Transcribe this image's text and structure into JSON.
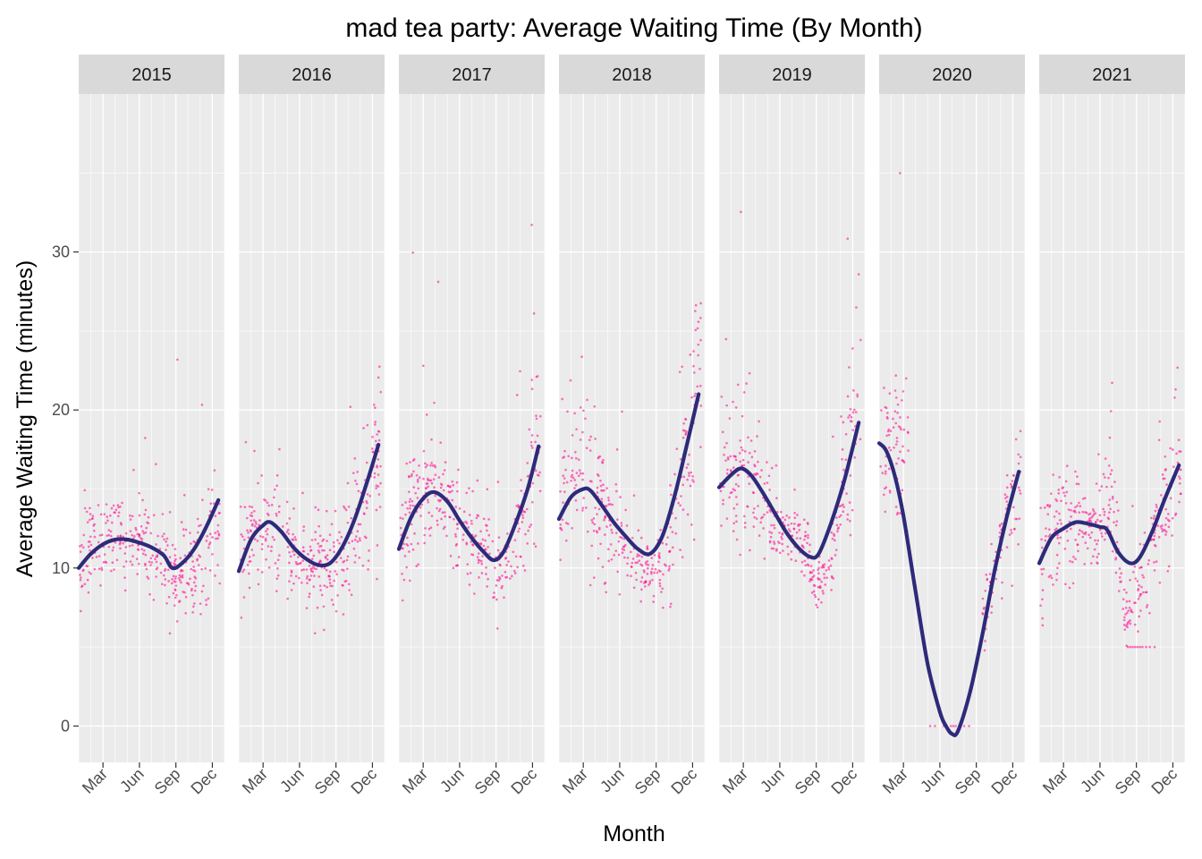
{
  "chart_data": {
    "type": "scatter",
    "title": "mad tea party: Average Waiting Time (By Month)",
    "xlabel": "Month",
    "ylabel": "Average Waiting Time (minutes)",
    "ylim": [
      -2.3,
      40
    ],
    "y_ticks": [
      0,
      10,
      20,
      30
    ],
    "x_ticks": [
      {
        "label": "Mar",
        "month": 3
      },
      {
        "label": "Jun",
        "month": 6
      },
      {
        "label": "Sep",
        "month": 9
      },
      {
        "label": "Dec",
        "month": 12
      }
    ],
    "xlim_months": [
      1,
      13
    ],
    "grid": true,
    "colors": {
      "points": "#ff1493",
      "smooth": "#2e2a7a",
      "panel_bg": "#ebebeb",
      "strip_bg": "#d9d9d9",
      "grid": "#ffffff"
    },
    "panels": [
      {
        "year": "2015",
        "smooth": [
          [
            1.0,
            10.0
          ],
          [
            2.0,
            10.9
          ],
          [
            3.0,
            11.5
          ],
          [
            4.0,
            11.8
          ],
          [
            5.0,
            11.8
          ],
          [
            6.0,
            11.6
          ],
          [
            7.0,
            11.3
          ],
          [
            8.0,
            10.8
          ],
          [
            8.7,
            10.0
          ],
          [
            9.5,
            10.3
          ],
          [
            10.5,
            11.2
          ],
          [
            11.5,
            12.6
          ],
          [
            12.5,
            14.3
          ]
        ],
        "point_profile": [
          [
            1,
            10,
            2.5
          ],
          [
            2,
            11,
            2.6
          ],
          [
            3,
            11.5,
            2.4
          ],
          [
            4,
            12,
            2.6
          ],
          [
            5,
            11.5,
            2.2
          ],
          [
            6,
            11.5,
            2.0
          ],
          [
            7,
            11.2,
            2.2
          ],
          [
            8,
            10.5,
            2.2
          ],
          [
            9,
            9.5,
            2.3
          ],
          [
            10,
            9.5,
            2.5
          ],
          [
            11,
            10.5,
            3.0
          ],
          [
            12,
            12.5,
            3.5
          ],
          [
            12.5,
            14,
            4.0
          ]
        ],
        "points_per_month": 30
      },
      {
        "year": "2016",
        "smooth": [
          [
            1.0,
            9.8
          ],
          [
            2.0,
            11.8
          ],
          [
            3.0,
            12.7
          ],
          [
            3.6,
            12.9
          ],
          [
            4.5,
            12.3
          ],
          [
            5.5,
            11.3
          ],
          [
            6.5,
            10.6
          ],
          [
            7.5,
            10.2
          ],
          [
            8.5,
            10.3
          ],
          [
            9.5,
            11.3
          ],
          [
            10.5,
            13.0
          ],
          [
            11.5,
            15.3
          ],
          [
            12.5,
            17.8
          ]
        ],
        "point_profile": [
          [
            1,
            10,
            3.0
          ],
          [
            2,
            12,
            3.2
          ],
          [
            3,
            12.5,
            3.2
          ],
          [
            4,
            12,
            3.5
          ],
          [
            5,
            11,
            2.8
          ],
          [
            6,
            10.5,
            2.5
          ],
          [
            7,
            10,
            2.5
          ],
          [
            8,
            10,
            2.5
          ],
          [
            9,
            10,
            2.8
          ],
          [
            10,
            11.5,
            3.0
          ],
          [
            11,
            13,
            3.5
          ],
          [
            12,
            16,
            4.5
          ],
          [
            12.5,
            17,
            5.0
          ]
        ],
        "points_per_month": 30
      },
      {
        "year": "2017",
        "smooth": [
          [
            1.0,
            11.2
          ],
          [
            2.0,
            13.2
          ],
          [
            3.0,
            14.4
          ],
          [
            3.9,
            14.8
          ],
          [
            5.0,
            14.2
          ],
          [
            6.0,
            13.0
          ],
          [
            7.0,
            11.9
          ],
          [
            8.0,
            11.0
          ],
          [
            8.8,
            10.5
          ],
          [
            9.6,
            11.0
          ],
          [
            10.6,
            12.8
          ],
          [
            11.6,
            15.0
          ],
          [
            12.5,
            17.7
          ]
        ],
        "point_profile": [
          [
            1,
            11.5,
            3.2
          ],
          [
            2,
            13.5,
            3.5
          ],
          [
            3,
            14.5,
            3.5
          ],
          [
            4,
            15,
            3.8
          ],
          [
            5,
            14,
            3.2
          ],
          [
            6,
            12.5,
            2.8
          ],
          [
            7,
            12,
            2.6
          ],
          [
            8,
            11,
            2.4
          ],
          [
            9,
            9,
            2.2
          ],
          [
            10,
            10.5,
            2.5
          ],
          [
            11,
            13,
            3.5
          ],
          [
            12,
            16,
            4.5
          ],
          [
            12.5,
            18,
            5.5
          ]
        ],
        "points_per_month": 30
      },
      {
        "year": "2018",
        "smooth": [
          [
            1.0,
            13.1
          ],
          [
            2.0,
            14.5
          ],
          [
            3.0,
            15.0
          ],
          [
            3.6,
            14.9
          ],
          [
            4.5,
            14.0
          ],
          [
            5.5,
            12.9
          ],
          [
            6.5,
            12.0
          ],
          [
            7.5,
            11.2
          ],
          [
            8.5,
            10.9
          ],
          [
            9.5,
            12.0
          ],
          [
            10.5,
            14.5
          ],
          [
            11.5,
            17.7
          ],
          [
            12.5,
            21.0
          ]
        ],
        "point_profile": [
          [
            1,
            13,
            4.0
          ],
          [
            2,
            15,
            4.0
          ],
          [
            3,
            16,
            5.0
          ],
          [
            4,
            14,
            4.0
          ],
          [
            5,
            13,
            3.2
          ],
          [
            6,
            12,
            2.8
          ],
          [
            7,
            11,
            2.4
          ],
          [
            8,
            10,
            2.0
          ],
          [
            9,
            9.5,
            2.0
          ],
          [
            10,
            11.5,
            2.8
          ],
          [
            11,
            15,
            4.5
          ],
          [
            12,
            19,
            6.0
          ],
          [
            12.5,
            22,
            7.0
          ]
        ],
        "points_per_month": 30
      },
      {
        "year": "2019",
        "smooth": [
          [
            1.0,
            15.1
          ],
          [
            2.0,
            15.9
          ],
          [
            2.8,
            16.3
          ],
          [
            3.6,
            15.9
          ],
          [
            4.5,
            14.9
          ],
          [
            5.5,
            13.6
          ],
          [
            6.5,
            12.3
          ],
          [
            7.5,
            11.3
          ],
          [
            8.5,
            10.7
          ],
          [
            9.2,
            10.9
          ],
          [
            10.2,
            12.8
          ],
          [
            11.3,
            15.5
          ],
          [
            12.5,
            19.2
          ]
        ],
        "point_profile": [
          [
            1,
            15,
            4.5
          ],
          [
            2,
            15.5,
            4.0
          ],
          [
            3,
            17,
            5.0
          ],
          [
            4,
            15,
            4.0
          ],
          [
            5,
            13.5,
            2.5
          ],
          [
            6,
            13,
            1.6
          ],
          [
            7,
            12.5,
            1.8
          ],
          [
            8,
            11,
            2.0
          ],
          [
            9,
            8.5,
            1.6
          ],
          [
            10,
            10.5,
            2.5
          ],
          [
            11,
            13.5,
            3.8
          ],
          [
            12,
            17,
            5.0
          ],
          [
            12.5,
            20,
            6.0
          ]
        ],
        "points_per_month": 30
      },
      {
        "year": "2020",
        "smooth": [
          [
            1.0,
            17.9
          ],
          [
            1.6,
            17.4
          ],
          [
            2.3,
            15.8
          ],
          [
            3.0,
            13.3
          ],
          [
            4.0,
            8.5
          ],
          [
            5.0,
            3.9
          ],
          [
            6.0,
            0.9
          ],
          [
            6.5,
            0.0
          ],
          [
            7.0,
            -0.5
          ],
          [
            7.5,
            -0.3
          ],
          [
            8.5,
            2.2
          ],
          [
            9.5,
            5.8
          ],
          [
            10.5,
            9.8
          ],
          [
            11.5,
            13.2
          ],
          [
            12.5,
            16.1
          ]
        ],
        "point_profile": [
          [
            1,
            17,
            5.0
          ],
          [
            2,
            18,
            5.0
          ],
          [
            3,
            17,
            5.0
          ]
        ],
        "points_per_month": 30,
        "closed_points": [
          [
            5.2,
            0
          ],
          [
            5.6,
            0
          ],
          [
            6.3,
            0
          ],
          [
            6.9,
            0
          ],
          [
            7.1,
            0
          ],
          [
            7.3,
            0
          ],
          [
            7.6,
            0
          ],
          [
            8.0,
            0
          ],
          [
            8.4,
            0
          ]
        ],
        "late_profile": [
          [
            9.5,
            7,
            2.0
          ],
          [
            10,
            8.5,
            2.2
          ],
          [
            10.5,
            10,
            2.5
          ],
          [
            11,
            11.5,
            2.8
          ],
          [
            11.5,
            13,
            3.0
          ],
          [
            12,
            14,
            3.5
          ],
          [
            12.5,
            15.5,
            4.0
          ]
        ],
        "late_points_per_month": 25
      },
      {
        "year": "2021",
        "smooth": [
          [
            1.0,
            10.3
          ],
          [
            2.0,
            11.9
          ],
          [
            3.0,
            12.5
          ],
          [
            4.0,
            12.9
          ],
          [
            5.0,
            12.8
          ],
          [
            6.0,
            12.6
          ],
          [
            6.6,
            12.4
          ],
          [
            7.5,
            11.0
          ],
          [
            8.5,
            10.3
          ],
          [
            9.3,
            10.7
          ],
          [
            10.3,
            12.3
          ],
          [
            11.3,
            14.3
          ],
          [
            12.5,
            16.5
          ]
        ],
        "point_profile": [
          [
            1,
            10,
            3.5
          ],
          [
            2,
            12,
            3.5
          ],
          [
            3,
            13,
            3.0
          ],
          [
            4,
            13.5,
            2.8
          ],
          [
            5,
            12.5,
            2.2
          ],
          [
            6,
            12.5,
            2.2
          ],
          [
            7,
            15,
            3.5
          ],
          [
            8,
            7,
            1.5
          ],
          [
            9,
            8,
            2.0
          ],
          [
            10,
            10,
            2.5
          ],
          [
            11,
            13,
            3.5
          ],
          [
            12,
            15,
            3.8
          ],
          [
            12.5,
            16,
            3.8
          ]
        ],
        "points_per_month": 30,
        "floor_points": [
          [
            8.3,
            5
          ],
          [
            8.5,
            5
          ],
          [
            8.7,
            5
          ],
          [
            8.9,
            5
          ],
          [
            9.1,
            5
          ],
          [
            9.3,
            5
          ],
          [
            9.5,
            5
          ],
          [
            9.8,
            5
          ],
          [
            10.1,
            5
          ],
          [
            10.5,
            5
          ]
        ]
      }
    ]
  }
}
